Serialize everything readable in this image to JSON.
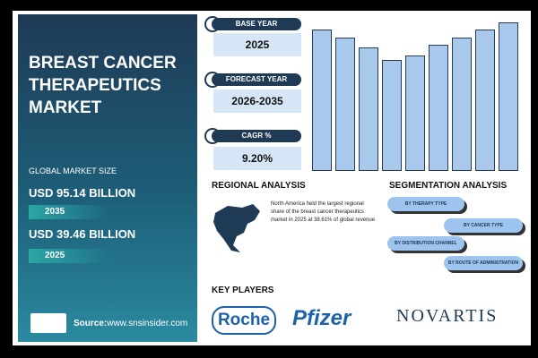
{
  "sidebar": {
    "title_lines": [
      "BREAST CANCER",
      "THERAPEUTICS",
      "MARKET"
    ],
    "market_size_label": "GLOBAL MARKET SIZE",
    "sizes": [
      {
        "amount": "USD 95.14 BILLION",
        "year": "2035"
      },
      {
        "amount": "USD 39.46 BILLION",
        "year": "2025"
      }
    ],
    "source_label": "Source:",
    "source_url": "www.snsinsider.com"
  },
  "stats": [
    {
      "label": "BASE YEAR",
      "value": "2025"
    },
    {
      "label": "FORECAST YEAR",
      "value": "2026-2035"
    },
    {
      "label": "CAGR %",
      "value": "9.20%"
    }
  ],
  "regional": {
    "title": "REGIONAL ANALYSIS",
    "text": "North America held the largest regional share of the breast cancer therapeutics market in 2025 at 38.61% of global revenue"
  },
  "segmentation": {
    "title": "SEGMENTATION ANALYSIS",
    "items": [
      "BY THERAPY TYPE",
      "BY CANCER TYPE",
      "BY DISTRIBUTION CHANNEL",
      "BY ROUTE OF ADMINISTRATION"
    ]
  },
  "key_players": {
    "title": "KEY PLAYERS",
    "companies": [
      "Roche",
      "Pfizer",
      "NOVARTIS"
    ]
  }
}
